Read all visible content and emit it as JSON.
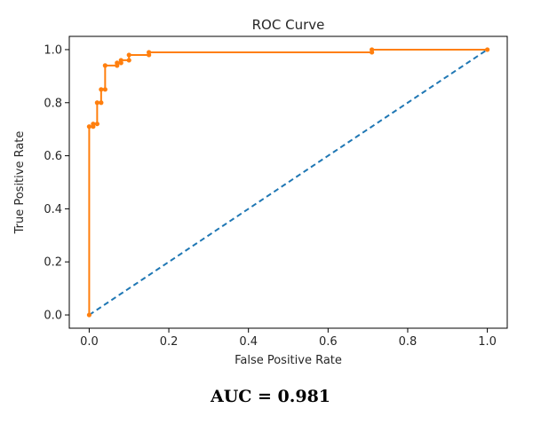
{
  "chart_data": {
    "type": "line",
    "title": "ROC Curve",
    "xlabel": "False Positive Rate",
    "ylabel": "True Positive Rate",
    "xlim": [
      -0.05,
      1.05
    ],
    "ylim": [
      -0.05,
      1.05
    ],
    "xticks": [
      "0.0",
      "0.2",
      "0.4",
      "0.6",
      "0.8",
      "1.0"
    ],
    "yticks": [
      "0.0",
      "0.2",
      "0.4",
      "0.6",
      "0.8",
      "1.0"
    ],
    "grid": false,
    "series": [
      {
        "style": "dashed",
        "color": "#1f77b4",
        "x": [
          0,
          1
        ],
        "y": [
          0,
          1
        ]
      },
      {
        "style": "solid-markers",
        "color": "#ff7f0e",
        "x": [
          0,
          0,
          0.01,
          0.01,
          0.02,
          0.02,
          0.03,
          0.03,
          0.04,
          0.04,
          0.07,
          0.07,
          0.08,
          0.08,
          0.1,
          0.1,
          0.15,
          0.15,
          0.71,
          0.71,
          1.0
        ],
        "y": [
          0,
          0.71,
          0.71,
          0.72,
          0.72,
          0.8,
          0.8,
          0.85,
          0.85,
          0.94,
          0.94,
          0.95,
          0.95,
          0.96,
          0.96,
          0.98,
          0.98,
          0.99,
          0.99,
          1.0,
          1.0
        ]
      }
    ]
  },
  "caption": "AUC = 0.981"
}
